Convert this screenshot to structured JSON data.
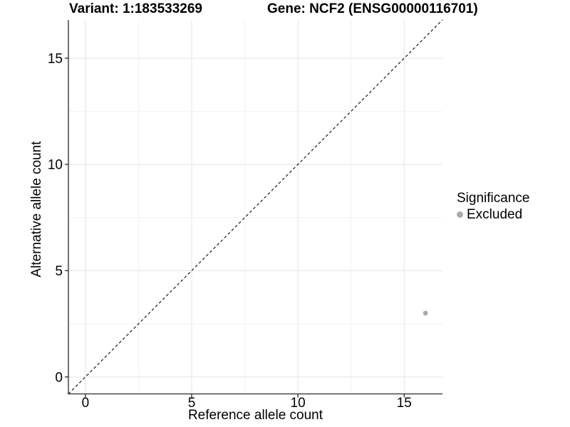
{
  "header": {
    "variant_title": "Variant: 1:183533269",
    "gene_title": "Gene: NCF2 (ENSG00000116701)"
  },
  "legend": {
    "title": "Significance",
    "items": [
      {
        "label": "Excluded",
        "marker": "circle",
        "color": "#ababab"
      }
    ]
  },
  "chart_data": {
    "type": "scatter",
    "titles": [
      "Variant: 1:183533269",
      "Gene: NCF2 (ENSG00000116701)"
    ],
    "xlabel": "Reference allele count",
    "ylabel": "Alternative allele count",
    "xlim": [
      -0.8,
      16.8
    ],
    "ylim": [
      -0.8,
      16.8
    ],
    "x_ticks": [
      0,
      5,
      10,
      15
    ],
    "y_ticks": [
      0,
      5,
      10,
      15
    ],
    "x_minor_ticks": [
      2.5,
      7.5,
      12.5
    ],
    "y_minor_ticks": [
      2.5,
      7.5,
      12.5
    ],
    "grid": "major+minor",
    "legend_position": "right",
    "reference_line": {
      "type": "identity",
      "slope": 1,
      "intercept": 0,
      "style": "dashed",
      "color": "#1a1a1a"
    },
    "series": [
      {
        "name": "Excluded",
        "color": "#ababab",
        "points": [
          {
            "x": 16,
            "y": 3
          }
        ]
      }
    ]
  },
  "colors": {
    "background": "#ffffff",
    "axis_line": "#2a2a2a",
    "tick_mark": "#2a2a2a",
    "grid_major": "#e6e6e6",
    "grid_minor": "#f2f2f2",
    "text": "#000000",
    "point_excluded": "#ababab"
  }
}
